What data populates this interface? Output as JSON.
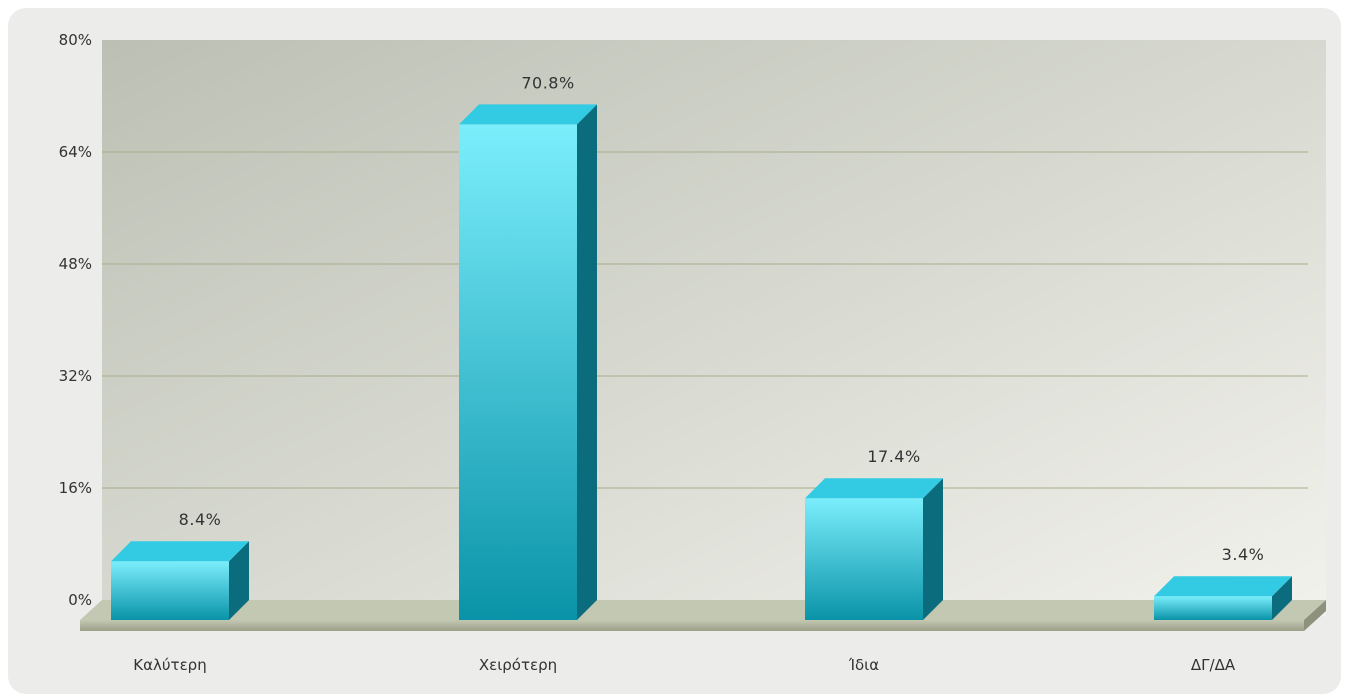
{
  "chart_data": {
    "type": "bar",
    "categories": [
      "Καλύτερη",
      "Χειρότερη",
      "Ίδια",
      "ΔΓ/ΔΑ"
    ],
    "values": [
      8.4,
      70.8,
      17.4,
      3.4
    ],
    "value_labels": [
      "8.4%",
      "70.8%",
      "17.4%",
      "3.4%"
    ],
    "title": "",
    "xlabel": "",
    "ylabel": "",
    "ylim": [
      0,
      80
    ],
    "yticks": [
      0,
      16,
      32,
      48,
      64,
      80
    ],
    "ytick_labels": [
      "0%",
      "16%",
      "32%",
      "48%",
      "64%",
      "80%"
    ],
    "grid": true,
    "legend": "none",
    "style": "3d"
  },
  "colors": {
    "bar_front_top": "#7beefc",
    "bar_front_bottom": "#0a93a8",
    "bar_top": "#33cbe3",
    "bar_side": "#0b6c7e",
    "plot_bg_left": "#bcc0b4",
    "plot_bg_right": "#f2f2ec",
    "gridline": "#a8ad8a",
    "floor_top": "#c3c8b2",
    "floor_front": "#9ca089"
  }
}
